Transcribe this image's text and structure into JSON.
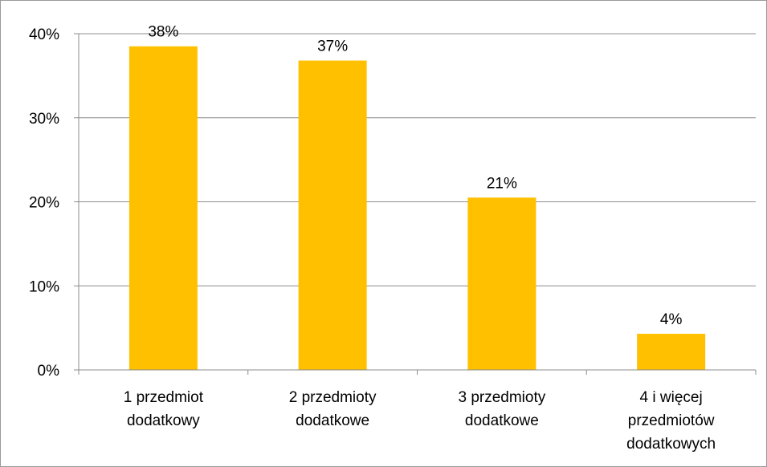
{
  "chart_data": {
    "type": "bar",
    "categories": [
      [
        "1 przedmiot",
        "dodatkowy"
      ],
      [
        "2 przedmioty",
        "dodatkowe"
      ],
      [
        "3 przedmioty",
        "dodatkowe"
      ],
      [
        "4 i więcej",
        "przedmiotów",
        "dodatkowych"
      ]
    ],
    "values": [
      38.5,
      36.8,
      20.5,
      4.3
    ],
    "data_labels": [
      "38%",
      "37%",
      "21%",
      "4%"
    ],
    "title": "",
    "xlabel": "",
    "ylabel": "",
    "ylim": [
      0,
      40
    ],
    "yticks": [
      0,
      10,
      20,
      30,
      40
    ],
    "ytick_labels": [
      "0%",
      "10%",
      "20%",
      "30%",
      "40%"
    ],
    "grid": "horizontal",
    "legend": "none",
    "colors": {
      "bar": "#FFC000",
      "grid": "#8c8c8c",
      "axis": "#8c8c8c"
    }
  }
}
